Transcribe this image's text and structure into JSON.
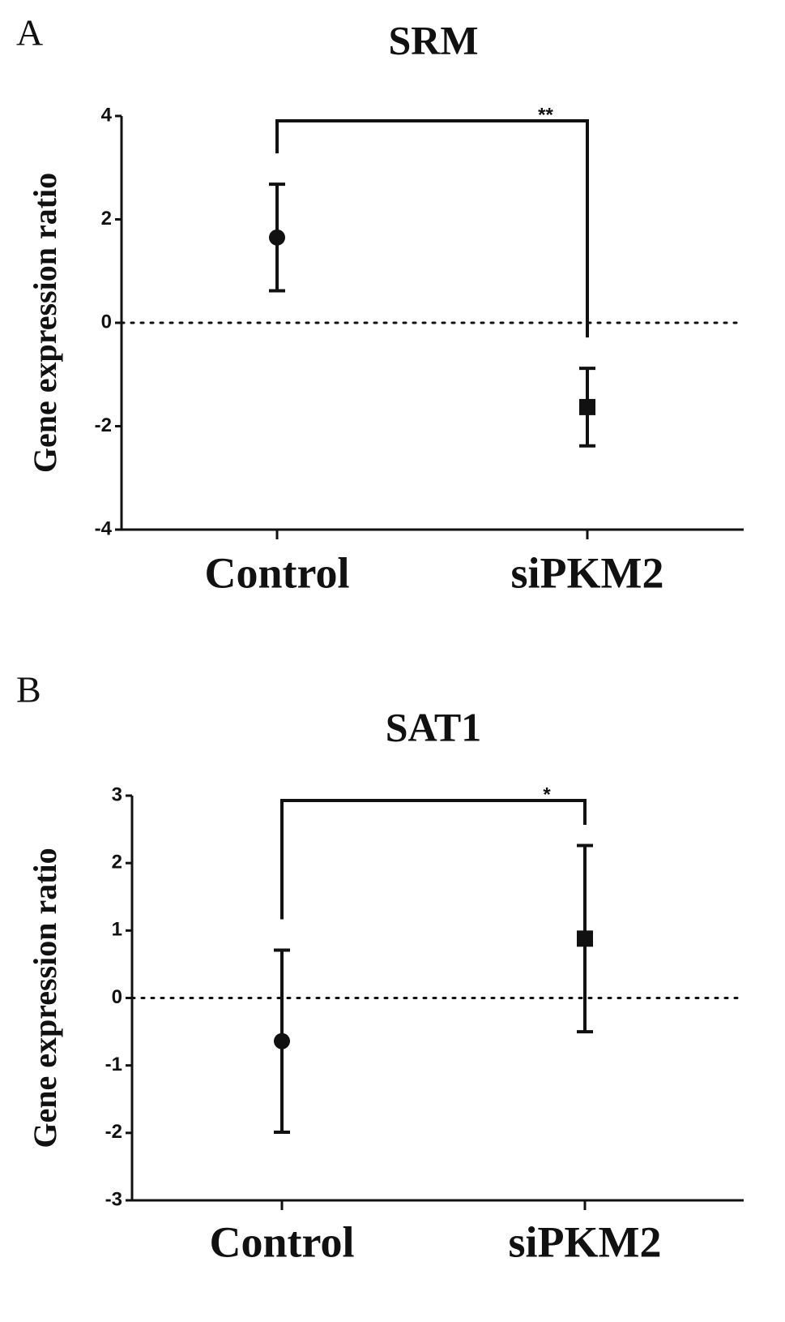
{
  "chart_data": [
    {
      "type": "errorbar",
      "panel": "A",
      "title": "SRM",
      "y_label": "Gene expression ratio",
      "categories": [
        "Control",
        "siPKM2"
      ],
      "values": [
        1.65,
        -1.63
      ],
      "errors": [
        1.03,
        0.75
      ],
      "markers": [
        "circle",
        "square"
      ],
      "color": "#111111",
      "ylim": [
        -4,
        4
      ],
      "yticks": [
        -4,
        -2,
        0,
        2,
        4
      ],
      "reference_line": 0,
      "significance": "**"
    },
    {
      "type": "errorbar",
      "panel": "B",
      "title": "SAT1",
      "y_label": "Gene expression ratio",
      "categories": [
        "Control",
        "siPKM2"
      ],
      "values": [
        -0.64,
        0.88
      ],
      "errors": [
        1.35,
        1.38
      ],
      "markers": [
        "circle",
        "square"
      ],
      "color": "#111111",
      "ylim": [
        -3,
        3
      ],
      "yticks": [
        -3,
        -2,
        -1,
        0,
        1,
        2,
        3
      ],
      "reference_line": 0,
      "significance": "*"
    }
  ]
}
